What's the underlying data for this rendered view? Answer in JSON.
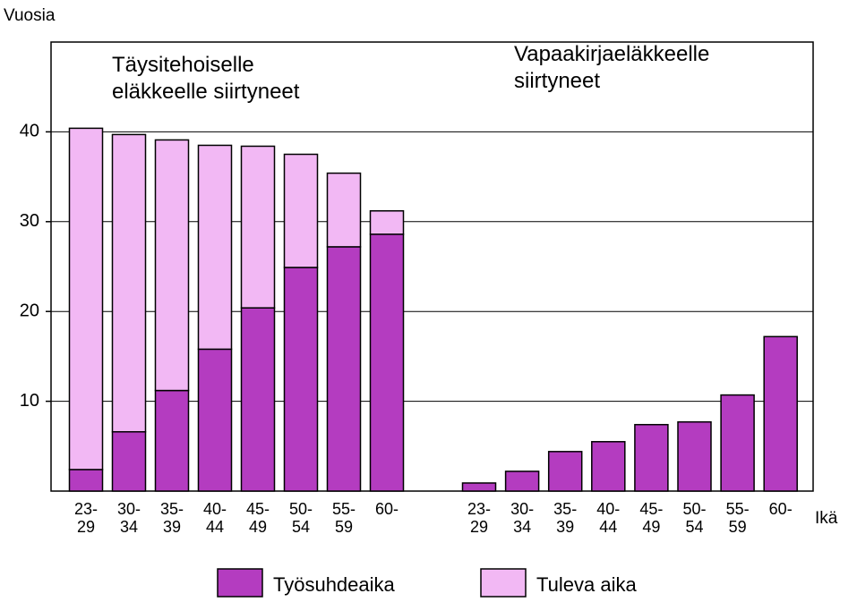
{
  "chart_data": {
    "type": "bar",
    "stacked": true,
    "y_label": "Vuosia",
    "x_label": "Ikä",
    "annotations": [
      "Täysitehoiselle\neläkkeelle siirtyneet",
      "Vapaakirjaeläkkeelle\nsiirtyneet"
    ],
    "categories": [
      "23-\n29",
      "30-\n34",
      "35-\n39",
      "40-\n44",
      "45-\n49",
      "50-\n54",
      "55-\n59",
      "60-",
      "23-\n29",
      "30-\n34",
      "35-\n39",
      "40-\n44",
      "45-\n49",
      "50-\n54",
      "55-\n59",
      "60-"
    ],
    "series": [
      {
        "name": "Työsuhdeaika",
        "color": "#b43cc0",
        "values": [
          2.4,
          6.6,
          11.2,
          15.8,
          20.4,
          24.9,
          27.2,
          28.6,
          0.9,
          2.2,
          4.4,
          5.5,
          7.4,
          7.7,
          10.7,
          17.2
        ]
      },
      {
        "name": "Tuleva aika",
        "color": "#f2b8f4",
        "values": [
          38.0,
          33.1,
          27.9,
          22.7,
          18.0,
          12.6,
          8.2,
          2.6,
          null,
          null,
          null,
          null,
          null,
          null,
          null,
          null
        ]
      }
    ],
    "ylim": [
      0,
      50
    ],
    "yticks": [
      10,
      20,
      30,
      40
    ],
    "grid": true
  }
}
